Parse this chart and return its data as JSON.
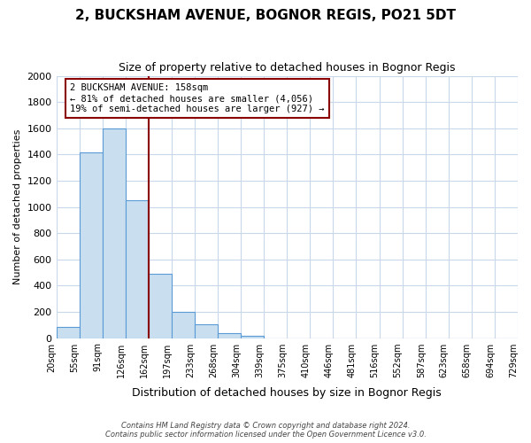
{
  "title": "2, BUCKSHAM AVENUE, BOGNOR REGIS, PO21 5DT",
  "subtitle": "Size of property relative to detached houses in Bognor Regis",
  "xlabel": "Distribution of detached houses by size in Bognor Regis",
  "ylabel": "Number of detached properties",
  "bin_labels": [
    "20sqm",
    "55sqm",
    "91sqm",
    "126sqm",
    "162sqm",
    "197sqm",
    "233sqm",
    "268sqm",
    "304sqm",
    "339sqm",
    "375sqm",
    "410sqm",
    "446sqm",
    "481sqm",
    "516sqm",
    "552sqm",
    "587sqm",
    "623sqm",
    "658sqm",
    "694sqm",
    "729sqm"
  ],
  "bar_heights": [
    85,
    1415,
    1600,
    1050,
    490,
    200,
    105,
    35,
    18,
    0,
    0,
    0,
    0,
    0,
    0,
    0,
    0,
    0,
    0,
    0
  ],
  "bar_color": "#c9dff0",
  "bar_edge_color": "#5b9bd5",
  "property_line_color": "#8b0000",
  "annotation_title": "2 BUCKSHAM AVENUE: 158sqm",
  "annotation_line1": "← 81% of detached houses are smaller (4,056)",
  "annotation_line2": "19% of semi-detached houses are larger (927) →",
  "annotation_box_color": "#8b0000",
  "ylim": [
    0,
    2000
  ],
  "yticks": [
    0,
    200,
    400,
    600,
    800,
    1000,
    1200,
    1400,
    1600,
    1800,
    2000
  ],
  "footer_line1": "Contains HM Land Registry data © Crown copyright and database right 2024.",
  "footer_line2": "Contains public sector information licensed under the Open Government Licence v3.0.",
  "bg_color": "#ffffff",
  "grid_color": "#c8d8e8"
}
